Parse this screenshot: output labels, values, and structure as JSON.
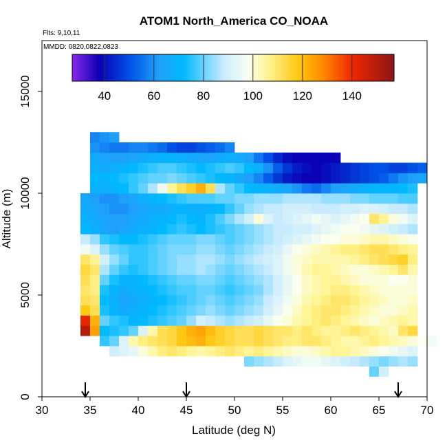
{
  "chart_data": {
    "type": "heatmap",
    "title": "ATOM1 North_America CO_NOAA",
    "annotations": {
      "flights": "Flts: 9,10,11",
      "dates": "MMDD: 0820,0822,0823"
    },
    "xlabel": "Latitude (deg N)",
    "ylabel": "Altitude (m)",
    "xlim": [
      30,
      70
    ],
    "ylim": [
      0,
      17500
    ],
    "x_ticks": [
      30,
      35,
      40,
      45,
      50,
      55,
      60,
      65,
      70
    ],
    "x_tick_labels": [
      "30",
      "35",
      "40",
      "45",
      "50",
      "55",
      "60",
      "65",
      "70"
    ],
    "y_ticks": [
      0,
      5000,
      10000,
      15000
    ],
    "y_tick_labels": [
      "0",
      "5000",
      "10000",
      "15000"
    ],
    "colorbar": {
      "range": [
        27,
        157
      ],
      "ticks": [
        40,
        60,
        80,
        100,
        120,
        140
      ],
      "tick_labels": [
        "40",
        "60",
        "80",
        "100",
        "120",
        "140"
      ],
      "position": "top"
    },
    "grid": false,
    "legend": "none",
    "cell_size": {
      "lat": 1,
      "alt": 500
    },
    "profile_markers_lat": [
      34.5,
      45,
      67
    ],
    "rows": [
      {
        "alt": 1000,
        "lat_start": 64,
        "values": [
          80,
          90
        ]
      },
      {
        "alt": 1500,
        "lat_start": 51,
        "values": [
          82,
          84,
          86,
          88,
          92,
          94,
          96,
          96,
          94,
          92,
          90,
          88,
          86,
          84,
          82,
          84,
          86,
          84
        ]
      },
      {
        "alt": 2000,
        "lat_start": 37,
        "values": [
          90,
          92,
          94,
          100,
          104,
          108,
          110,
          108,
          106,
          104,
          106,
          108,
          110,
          108,
          106,
          108,
          106,
          104,
          102,
          100,
          100,
          102,
          104,
          106,
          106,
          104,
          102,
          100,
          98,
          96,
          94,
          92
        ]
      },
      {
        "alt": 2500,
        "lat_start": 36,
        "values": [
          76,
          80,
          92,
          104,
          108,
          110,
          112,
          114,
          118,
          120,
          122,
          118,
          116,
          114,
          112,
          112,
          114,
          112,
          110,
          108,
          108,
          110,
          110,
          108,
          106,
          104,
          104,
          106,
          108,
          106,
          104,
          102,
          100,
          98,
          96
        ]
      },
      {
        "alt": 3000,
        "lat_start": 34,
        "values": [
          150,
          125,
          72,
          74,
          76,
          80,
          92,
          104,
          112,
          114,
          118,
          122,
          124,
          120,
          116,
          114,
          112,
          112,
          114,
          112,
          110,
          110,
          108,
          110,
          108,
          106,
          106,
          108,
          110,
          108,
          106,
          104,
          102,
          110,
          114
        ]
      },
      {
        "alt": 3500,
        "lat_start": 34,
        "values": [
          142,
          122,
          80,
          76,
          74,
          70,
          72,
          74,
          76,
          78,
          80,
          84,
          90,
          88,
          86,
          84,
          86,
          88,
          90,
          94,
          98,
          100,
          104,
          106,
          108,
          110,
          108,
          106,
          104,
          102,
          100,
          102,
          104,
          106,
          104
        ]
      },
      {
        "alt": 4000,
        "lat_start": 34,
        "values": [
          118,
          112,
          74,
          70,
          66,
          68,
          70,
          72,
          74,
          76,
          78,
          80,
          82,
          84,
          82,
          80,
          82,
          84,
          86,
          90,
          94,
          98,
          102,
          106,
          108,
          110,
          110,
          108,
          106,
          104,
          102,
          100,
          100,
          102,
          104
        ]
      },
      {
        "alt": 4500,
        "lat_start": 34,
        "values": [
          112,
          110,
          72,
          68,
          64,
          66,
          68,
          70,
          72,
          74,
          76,
          78,
          80,
          82,
          80,
          78,
          80,
          82,
          84,
          88,
          92,
          96,
          100,
          104,
          106,
          108,
          110,
          110,
          108,
          106,
          104,
          102,
          100,
          100,
          102
        ]
      },
      {
        "alt": 5000,
        "lat_start": 34,
        "values": [
          110,
          108,
          74,
          70,
          66,
          68,
          70,
          72,
          74,
          76,
          78,
          78,
          80,
          80,
          78,
          76,
          78,
          80,
          82,
          86,
          90,
          94,
          98,
          102,
          104,
          106,
          108,
          108,
          106,
          104,
          102,
          100,
          100,
          100,
          100
        ]
      },
      {
        "alt": 5500,
        "lat_start": 34,
        "values": [
          112,
          108,
          80,
          74,
          70,
          70,
          72,
          74,
          76,
          78,
          80,
          80,
          82,
          82,
          80,
          78,
          80,
          82,
          84,
          86,
          90,
          94,
          98,
          102,
          104,
          106,
          106,
          104,
          102,
          100,
          100,
          100,
          98,
          98,
          100
        ]
      },
      {
        "alt": 6000,
        "lat_start": 34,
        "values": [
          114,
          110,
          86,
          80,
          76,
          74,
          76,
          78,
          80,
          82,
          84,
          84,
          86,
          84,
          82,
          80,
          82,
          84,
          86,
          88,
          92,
          96,
          100,
          104,
          106,
          106,
          104,
          102,
          100,
          100,
          102,
          104,
          106,
          110,
          104
        ]
      },
      {
        "alt": 6500,
        "lat_start": 34,
        "values": [
          110,
          106,
          90,
          84,
          80,
          76,
          76,
          78,
          80,
          82,
          84,
          84,
          86,
          86,
          84,
          82,
          84,
          86,
          88,
          90,
          92,
          96,
          100,
          102,
          104,
          104,
          104,
          104,
          106,
          108,
          110,
          112,
          114,
          116,
          108
        ]
      },
      {
        "alt": 7000,
        "lat_start": 34,
        "values": [
          96,
          92,
          84,
          80,
          78,
          76,
          76,
          78,
          80,
          82,
          82,
          82,
          84,
          84,
          82,
          80,
          82,
          84,
          86,
          88,
          90,
          94,
          98,
          100,
          102,
          104,
          106,
          108,
          108,
          110,
          112,
          112,
          110,
          108,
          106
        ]
      },
      {
        "alt": 7500,
        "lat_start": 34,
        "values": [
          88,
          84,
          76,
          74,
          72,
          72,
          74,
          76,
          78,
          80,
          80,
          80,
          82,
          82,
          80,
          78,
          80,
          82,
          84,
          86,
          88,
          90,
          92,
          94,
          96,
          98,
          98,
          100,
          100,
          102,
          104,
          104,
          102,
          100,
          98
        ]
      },
      {
        "alt": 8000,
        "lat_start": 34,
        "values": [
          72,
          68,
          64,
          62,
          64,
          66,
          68,
          70,
          72,
          74,
          76,
          74,
          72,
          74,
          76,
          78,
          80,
          82,
          84,
          86,
          88,
          88,
          90,
          90,
          92,
          94,
          96,
          98,
          98,
          96,
          94,
          92,
          90,
          88,
          86
        ]
      },
      {
        "alt": 8500,
        "lat_start": 34,
        "values": [
          68,
          66,
          64,
          62,
          62,
          64,
          66,
          68,
          70,
          72,
          74,
          72,
          70,
          74,
          78,
          82,
          86,
          90,
          100,
          92,
          88,
          90,
          92,
          94,
          96,
          94,
          92,
          94,
          96,
          98,
          110,
          106,
          100,
          96,
          92
        ]
      },
      {
        "alt": 9000,
        "lat_start": 34,
        "values": [
          66,
          64,
          62,
          60,
          60,
          62,
          64,
          66,
          66,
          68,
          70,
          68,
          68,
          70,
          72,
          76,
          80,
          84,
          86,
          88,
          88,
          90,
          90,
          90,
          88,
          88,
          88,
          90,
          90,
          92,
          92,
          90,
          88,
          88,
          86
        ]
      },
      {
        "alt": 9500,
        "lat_start": 34,
        "values": [
          64,
          62,
          60,
          60,
          62,
          64,
          68,
          70,
          72,
          74,
          76,
          78,
          78,
          78,
          80,
          80,
          82,
          82,
          84,
          84,
          84,
          86,
          86,
          86,
          86,
          84,
          84,
          84,
          82,
          82,
          80,
          80,
          80,
          78,
          78
        ]
      },
      {
        "alt": 10000,
        "lat_start": 35,
        "values": [
          70,
          68,
          70,
          72,
          76,
          80,
          86,
          96,
          106,
          112,
          116,
          122,
          112,
          86,
          80,
          76,
          72,
          70,
          68,
          66,
          64,
          60,
          56,
          54,
          58,
          62,
          64,
          66,
          68,
          70,
          70,
          70,
          72,
          74
        ]
      },
      {
        "alt": 10500,
        "lat_start": 35,
        "values": [
          72,
          70,
          72,
          74,
          76,
          78,
          80,
          80,
          82,
          80,
          78,
          76,
          74,
          72,
          70,
          66,
          62,
          58,
          52,
          46,
          42,
          40,
          38,
          38,
          40,
          42,
          44,
          46,
          48,
          50,
          52,
          56,
          60,
          62,
          64
        ]
      },
      {
        "alt": 11000,
        "lat_start": 35,
        "values": [
          68,
          66,
          68,
          70,
          72,
          74,
          76,
          78,
          78,
          76,
          74,
          72,
          74,
          76,
          78,
          76,
          72,
          68,
          60,
          52,
          46,
          42,
          40,
          38,
          40,
          42,
          44,
          46,
          48,
          50,
          50,
          48,
          48,
          50,
          52
        ]
      },
      {
        "alt": 11500,
        "lat_start": 35,
        "values": [
          66,
          64,
          62,
          62,
          64,
          66,
          68,
          70,
          70,
          68,
          66,
          64,
          64,
          66,
          68,
          66,
          62,
          56,
          50,
          44,
          40,
          38,
          38,
          38,
          38,
          38
        ]
      },
      {
        "alt": 12000,
        "lat_start": 35,
        "values": [
          60,
          58,
          56,
          56,
          58,
          58,
          56,
          54,
          50,
          48,
          48,
          50,
          52,
          54,
          58
        ]
      },
      {
        "alt": 12500,
        "lat_start": 35,
        "values": [
          58,
          60,
          62
        ]
      }
    ]
  }
}
